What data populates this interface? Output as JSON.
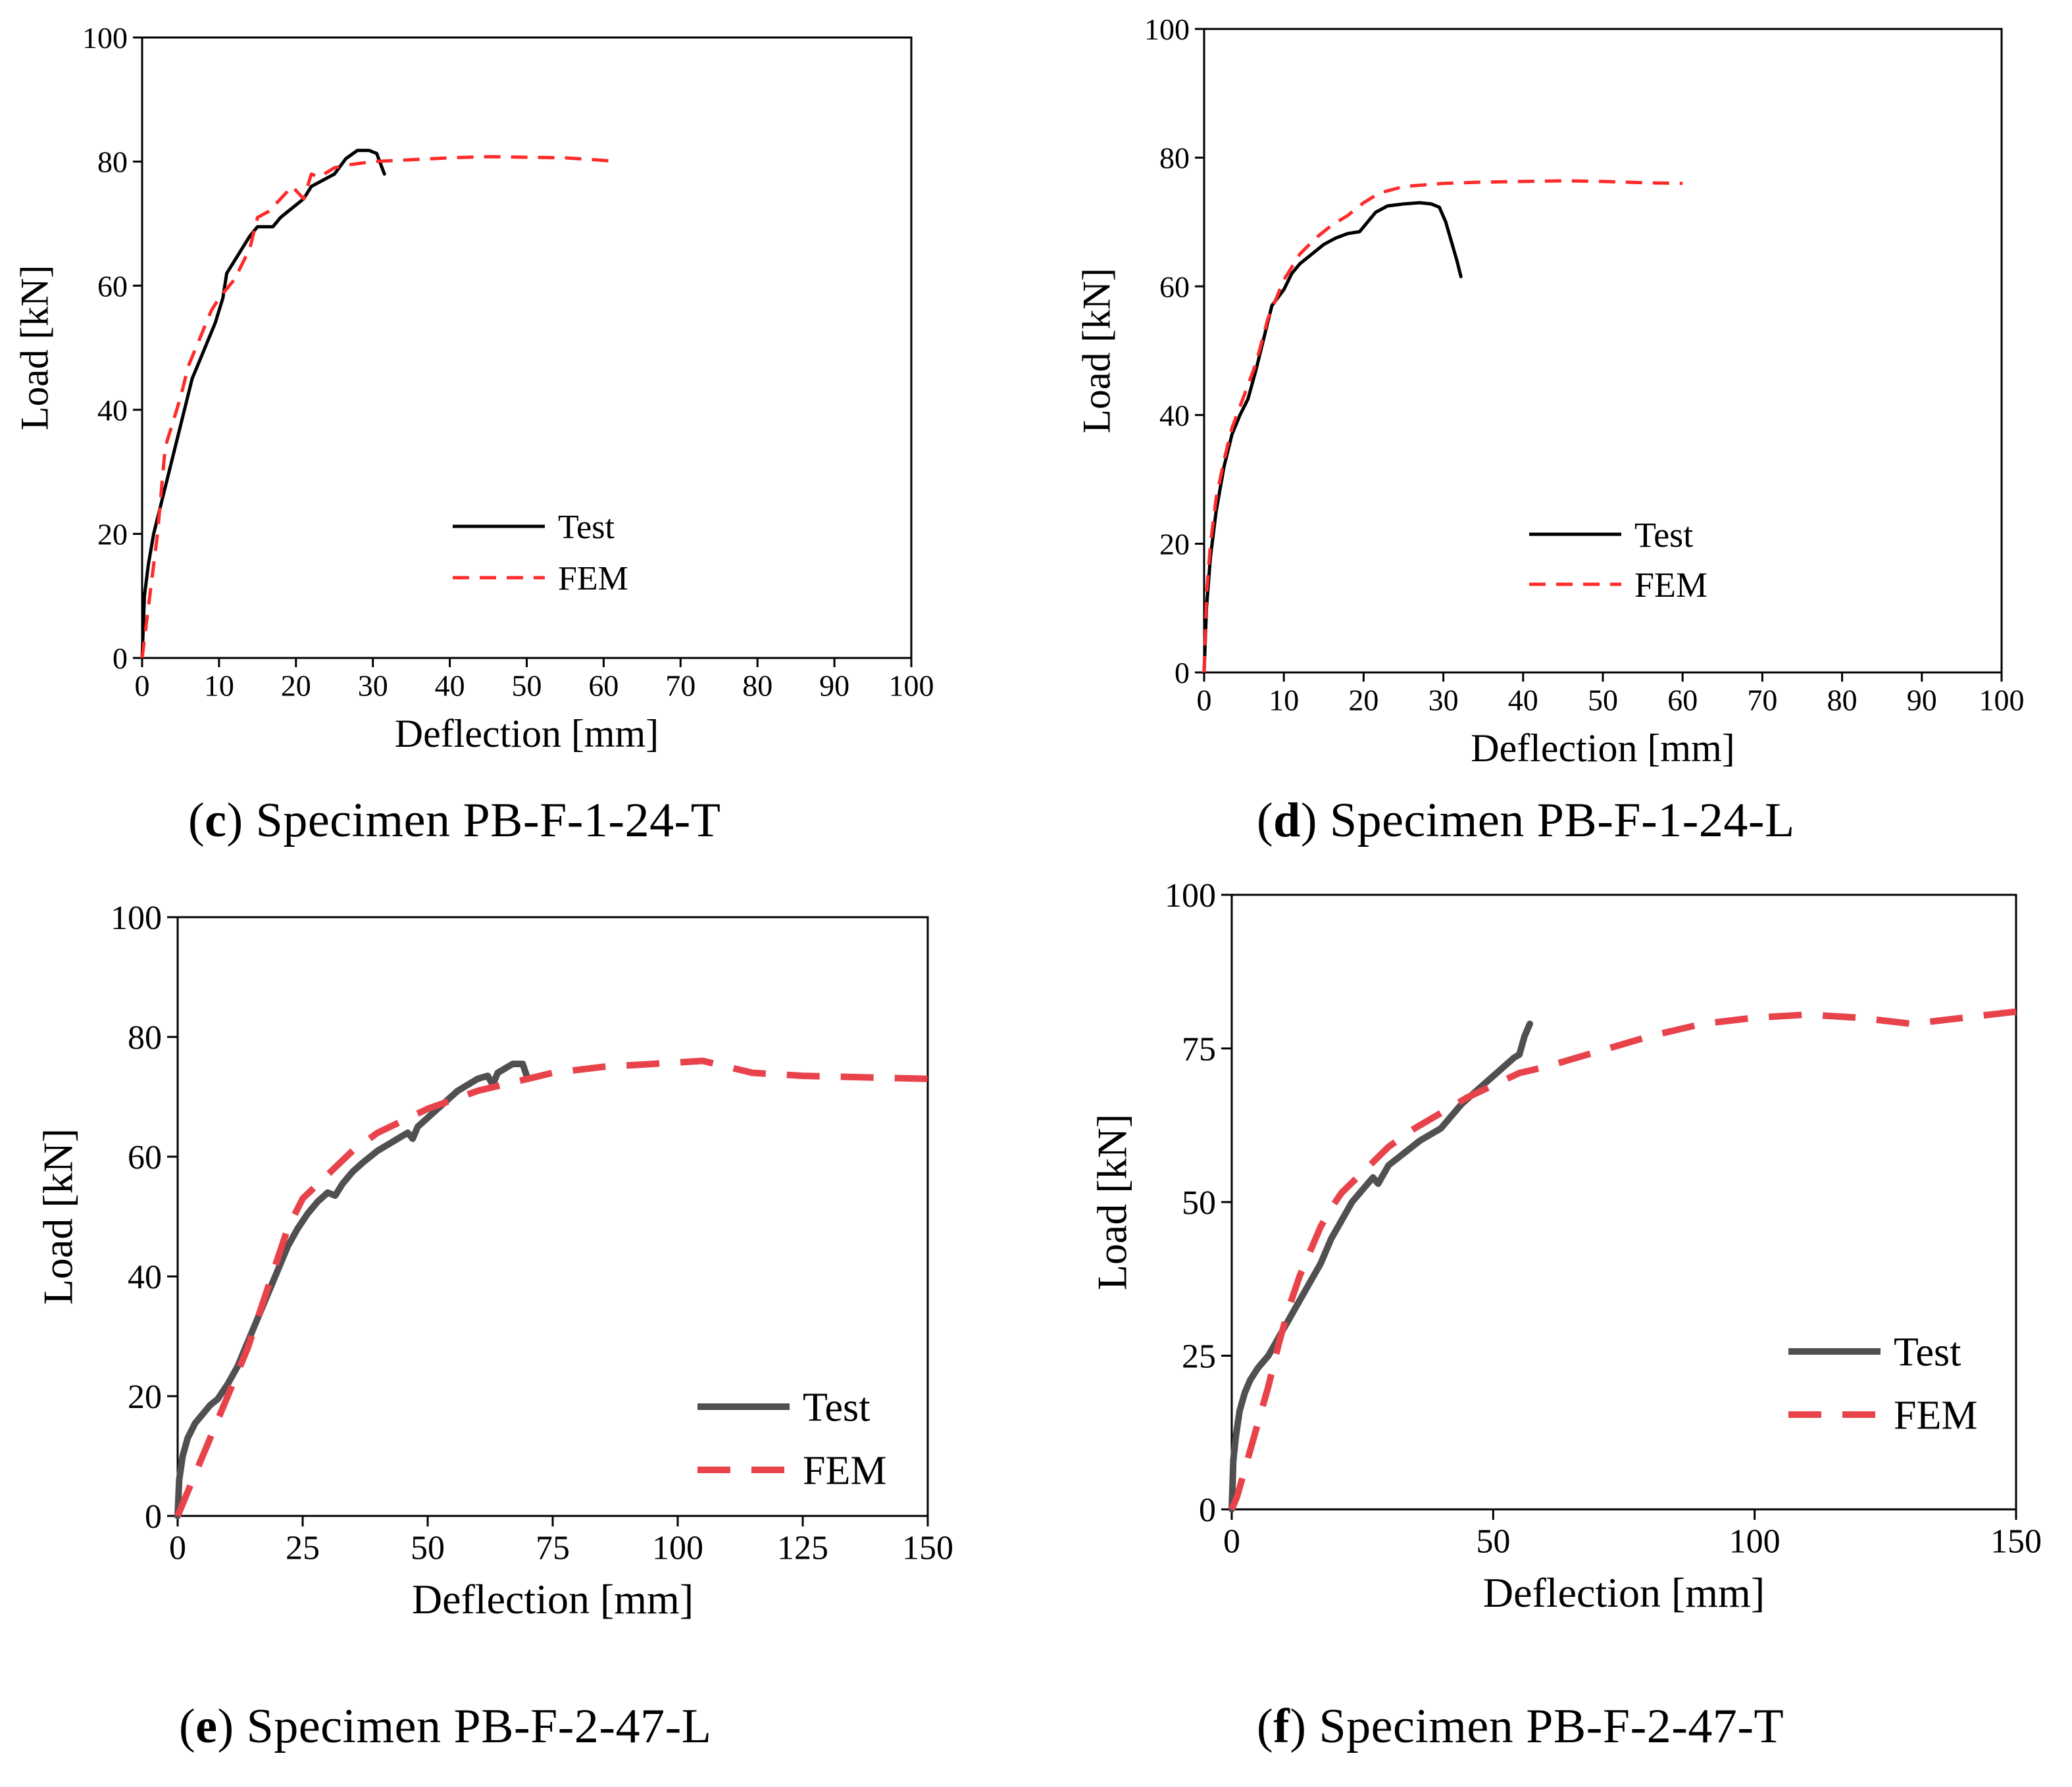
{
  "chart_data": [
    {
      "id": "c",
      "type": "line",
      "caption_letter": "c",
      "caption_text": "Specimen PB-F-1-24-T",
      "xlabel": "Deflection [mm]",
      "ylabel": "Load [kN]",
      "xlim": [
        0,
        100
      ],
      "ylim": [
        0,
        100
      ],
      "x_ticks": [
        0,
        10,
        20,
        30,
        40,
        50,
        60,
        70,
        80,
        90,
        100
      ],
      "y_ticks": [
        0,
        20,
        40,
        60,
        80,
        100
      ],
      "legend_position": "center",
      "series": [
        {
          "name": "Test",
          "color": "#000000",
          "style": "solid",
          "points": [
            [
              0,
              0
            ],
            [
              0.3,
              10
            ],
            [
              0.8,
              15
            ],
            [
              1.5,
              20
            ],
            [
              2.5,
              25
            ],
            [
              3.5,
              30
            ],
            [
              4.5,
              35
            ],
            [
              5.5,
              40
            ],
            [
              6.5,
              45
            ],
            [
              7.5,
              48
            ],
            [
              8.5,
              51
            ],
            [
              9.5,
              54
            ],
            [
              10.5,
              58
            ],
            [
              11,
              62
            ],
            [
              12,
              64
            ],
            [
              13,
              66
            ],
            [
              14,
              68
            ],
            [
              15,
              69.5
            ],
            [
              17,
              69.5
            ],
            [
              18,
              71
            ],
            [
              19,
              72
            ],
            [
              21,
              74
            ],
            [
              22,
              76
            ],
            [
              23.5,
              77
            ],
            [
              25,
              78
            ],
            [
              26.5,
              80.5
            ],
            [
              28,
              81.8
            ],
            [
              29.5,
              81.8
            ],
            [
              30.5,
              81.3
            ],
            [
              31.5,
              78
            ]
          ]
        },
        {
          "name": "FEM",
          "color": "#ff2a2a",
          "style": "dashed",
          "points": [
            [
              0,
              0
            ],
            [
              0.5,
              5
            ],
            [
              1.2,
              12
            ],
            [
              2,
              20
            ],
            [
              3,
              34
            ],
            [
              4,
              38
            ],
            [
              5,
              42
            ],
            [
              6,
              47
            ],
            [
              7,
              50
            ],
            [
              8,
              53
            ],
            [
              9,
              56
            ],
            [
              10,
              58
            ],
            [
              12,
              61
            ],
            [
              14,
              66
            ],
            [
              15,
              71
            ],
            [
              16.5,
              72
            ],
            [
              18,
              74
            ],
            [
              19.5,
              76
            ],
            [
              21,
              74
            ],
            [
              22,
              78
            ],
            [
              23,
              77.5
            ],
            [
              25,
              79
            ],
            [
              27,
              79.5
            ],
            [
              30,
              80
            ],
            [
              35,
              80.3
            ],
            [
              40,
              80.6
            ],
            [
              45,
              80.8
            ],
            [
              50,
              80.7
            ],
            [
              55,
              80.6
            ],
            [
              60,
              80.2
            ],
            [
              61.5,
              80
            ]
          ]
        }
      ]
    },
    {
      "id": "d",
      "type": "line",
      "caption_letter": "d",
      "caption_text": "Specimen PB-F-1-24-L",
      "xlabel": "Deflection [mm]",
      "ylabel": "Load [kN]",
      "xlim": [
        0,
        100
      ],
      "ylim": [
        0,
        100
      ],
      "x_ticks": [
        0,
        10,
        20,
        30,
        40,
        50,
        60,
        70,
        80,
        90,
        100
      ],
      "y_ticks": [
        0,
        20,
        40,
        60,
        80,
        100
      ],
      "legend_position": "center",
      "series": [
        {
          "name": "Test",
          "color": "#000000",
          "style": "solid",
          "points": [
            [
              0,
              0
            ],
            [
              0.3,
              10
            ],
            [
              0.8,
              18
            ],
            [
              1.5,
              25
            ],
            [
              2.5,
              32
            ],
            [
              3.5,
              37
            ],
            [
              4.5,
              40
            ],
            [
              5.5,
              42.5
            ],
            [
              6.5,
              47
            ],
            [
              7.5,
              52
            ],
            [
              8.5,
              57
            ],
            [
              10,
              59.5
            ],
            [
              11,
              62
            ],
            [
              12,
              63.5
            ],
            [
              13.5,
              65
            ],
            [
              15,
              66.5
            ],
            [
              16.5,
              67.5
            ],
            [
              18,
              68.2
            ],
            [
              19.5,
              68.5
            ],
            [
              20.5,
              70
            ],
            [
              21.5,
              71.5
            ],
            [
              23,
              72.5
            ],
            [
              25,
              72.8
            ],
            [
              27,
              73
            ],
            [
              28.5,
              72.8
            ],
            [
              29.5,
              72.3
            ],
            [
              30.3,
              70
            ],
            [
              31,
              67
            ],
            [
              31.7,
              64
            ],
            [
              32.2,
              61.5
            ]
          ]
        },
        {
          "name": "FEM",
          "color": "#ff2a2a",
          "style": "dashed",
          "points": [
            [
              0,
              0
            ],
            [
              0.3,
              12
            ],
            [
              0.8,
              20
            ],
            [
              1.5,
              27
            ],
            [
              2.5,
              33
            ],
            [
              3.5,
              38
            ],
            [
              5,
              43
            ],
            [
              6.5,
              48
            ],
            [
              8,
              55
            ],
            [
              10,
              61
            ],
            [
              12,
              65
            ],
            [
              14,
              67.5
            ],
            [
              16,
              69.5
            ],
            [
              18,
              71
            ],
            [
              20,
              73
            ],
            [
              22,
              74.5
            ],
            [
              25,
              75.5
            ],
            [
              30,
              76
            ],
            [
              35,
              76.2
            ],
            [
              40,
              76.3
            ],
            [
              45,
              76.4
            ],
            [
              50,
              76.3
            ],
            [
              55,
              76.1
            ],
            [
              60,
              76
            ]
          ]
        }
      ]
    },
    {
      "id": "e",
      "type": "line",
      "caption_letter": "e",
      "caption_text": "Specimen PB-F-2-47-L",
      "xlabel": "Deflection [mm]",
      "ylabel": "Load [kN]",
      "xlim": [
        0,
        150
      ],
      "ylim": [
        0,
        100
      ],
      "x_ticks": [
        0,
        25,
        50,
        75,
        100,
        125,
        150
      ],
      "y_ticks": [
        0,
        20,
        40,
        60,
        80,
        100
      ],
      "legend_position": "bottom-right",
      "series": [
        {
          "name": "Test",
          "color": "#505050",
          "style": "solid",
          "points": [
            [
              0,
              0
            ],
            [
              0.3,
              6
            ],
            [
              1,
              10
            ],
            [
              2,
              13
            ],
            [
              3.5,
              15.5
            ],
            [
              5,
              17
            ],
            [
              6.5,
              18.5
            ],
            [
              8,
              19.5
            ],
            [
              10,
              22
            ],
            [
              12,
              25
            ],
            [
              14,
              29
            ],
            [
              16,
              33
            ],
            [
              18,
              37
            ],
            [
              20,
              41
            ],
            [
              22,
              45
            ],
            [
              24,
              48
            ],
            [
              26,
              50.5
            ],
            [
              28,
              52.5
            ],
            [
              30,
              54
            ],
            [
              31.5,
              53.5
            ],
            [
              33,
              55.5
            ],
            [
              35,
              57.5
            ],
            [
              37,
              59
            ],
            [
              40,
              61
            ],
            [
              43,
              62.5
            ],
            [
              46,
              64
            ],
            [
              47,
              63
            ],
            [
              48,
              65
            ],
            [
              52,
              68
            ],
            [
              56,
              71
            ],
            [
              60,
              73
            ],
            [
              62,
              73.5
            ],
            [
              63,
              72
            ],
            [
              64,
              74
            ],
            [
              66,
              75
            ],
            [
              67,
              75.5
            ],
            [
              69,
              75.5
            ],
            [
              70,
              73
            ]
          ]
        },
        {
          "name": "FEM",
          "color": "#e8434b",
          "style": "dashed",
          "points": [
            [
              0,
              0
            ],
            [
              2,
              4
            ],
            [
              4,
              8
            ],
            [
              6,
              12
            ],
            [
              8,
              16
            ],
            [
              10,
              20
            ],
            [
              12,
              24
            ],
            [
              14,
              28
            ],
            [
              16,
              33
            ],
            [
              18,
              38
            ],
            [
              20,
              43
            ],
            [
              22,
              48
            ],
            [
              25,
              53
            ],
            [
              30,
              57
            ],
            [
              35,
              61
            ],
            [
              40,
              64
            ],
            [
              45,
              66
            ],
            [
              50,
              68
            ],
            [
              55,
              69.5
            ],
            [
              60,
              71
            ],
            [
              65,
              72
            ],
            [
              70,
              73
            ],
            [
              75,
              74
            ],
            [
              85,
              75
            ],
            [
              95,
              75.5
            ],
            [
              105,
              76
            ],
            [
              115,
              74
            ],
            [
              125,
              73.5
            ],
            [
              140,
              73.2
            ],
            [
              150,
              73
            ]
          ]
        }
      ]
    },
    {
      "id": "f",
      "type": "line",
      "caption_letter": "f",
      "caption_text": "Specimen PB-F-2-47-T",
      "xlabel": "Deflection [mm]",
      "ylabel": "Load [kN]",
      "xlim": [
        0,
        150
      ],
      "ylim": [
        0,
        100
      ],
      "x_ticks": [
        0,
        50,
        100,
        150
      ],
      "y_ticks": [
        0,
        25,
        50,
        75,
        100
      ],
      "legend_position": "bottom-right",
      "series": [
        {
          "name": "Test",
          "color": "#505050",
          "style": "solid",
          "points": [
            [
              0,
              0
            ],
            [
              0.3,
              8
            ],
            [
              0.8,
              12
            ],
            [
              1.5,
              16
            ],
            [
              2.5,
              19
            ],
            [
              3.5,
              21
            ],
            [
              5,
              23
            ],
            [
              7,
              25
            ],
            [
              9,
              28
            ],
            [
              11,
              31
            ],
            [
              13,
              34
            ],
            [
              15,
              37
            ],
            [
              17,
              40
            ],
            [
              19,
              44
            ],
            [
              21,
              47
            ],
            [
              23,
              50
            ],
            [
              25,
              52
            ],
            [
              27,
              54
            ],
            [
              28,
              53
            ],
            [
              30,
              56
            ],
            [
              33,
              58
            ],
            [
              36,
              60
            ],
            [
              40,
              62
            ],
            [
              44,
              66
            ],
            [
              48,
              69
            ],
            [
              52,
              72
            ],
            [
              54,
              73.5
            ],
            [
              55,
              74
            ],
            [
              56,
              77
            ],
            [
              57,
              79
            ]
          ]
        },
        {
          "name": "FEM",
          "color": "#e8434b",
          "style": "dashed",
          "points": [
            [
              0,
              0
            ],
            [
              1,
              2
            ],
            [
              2,
              5
            ],
            [
              3,
              8
            ],
            [
              5,
              14
            ],
            [
              7,
              20
            ],
            [
              9,
              27
            ],
            [
              11,
              33
            ],
            [
              13,
              38
            ],
            [
              15,
              42
            ],
            [
              17,
              46
            ],
            [
              19,
              49
            ],
            [
              21,
              51.5
            ],
            [
              24,
              54
            ],
            [
              27,
              56.5
            ],
            [
              30,
              59
            ],
            [
              35,
              62
            ],
            [
              40,
              64.5
            ],
            [
              45,
              67
            ],
            [
              50,
              69
            ],
            [
              55,
              71
            ],
            [
              60,
              72
            ],
            [
              70,
              74.5
            ],
            [
              80,
              77
            ],
            [
              90,
              79
            ],
            [
              100,
              80
            ],
            [
              110,
              80.5
            ],
            [
              120,
              80
            ],
            [
              130,
              79
            ],
            [
              140,
              80
            ],
            [
              150,
              81
            ]
          ]
        }
      ]
    }
  ]
}
